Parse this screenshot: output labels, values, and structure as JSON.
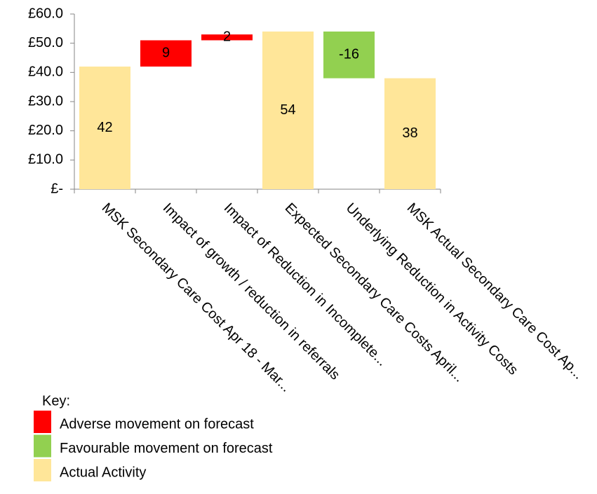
{
  "chart_data": {
    "type": "waterfall",
    "categories": [
      "MSK Secondary Care Cost Apr 18 - Mar...",
      "Impact of growth / reduction in referrals",
      "Impact of Reduction in Incomplete...",
      "Expected Secondary Care Costs April...",
      "Underlying Reduction in Activity Costs",
      "MSK Actual Secondary Care Cost Ap..."
    ],
    "values": [
      42,
      9,
      2,
      54,
      -16,
      38
    ],
    "colors": [
      "#ffe699",
      "#ff0000",
      "#ff0000",
      "#ffe699",
      "#92d050",
      "#ffe699"
    ],
    "ylim": [
      0,
      60
    ],
    "yticks": [
      {
        "value": 0,
        "label": "£-"
      },
      {
        "value": 10,
        "label": "£10.0"
      },
      {
        "value": 20,
        "label": "£20.0"
      },
      {
        "value": 30,
        "label": "£30.0"
      },
      {
        "value": 40,
        "label": "£40.0"
      },
      {
        "value": 50,
        "label": "£50.0"
      },
      {
        "value": 60,
        "label": "£60.0"
      }
    ],
    "legend": {
      "title": "Key:",
      "items": [
        {
          "name": "Adverse movement on forecast",
          "color": "#ff0000"
        },
        {
          "name": "Favourable movement on forecast",
          "color": "#92d050"
        },
        {
          "name": "Actual Activity",
          "color": "#ffe699"
        }
      ]
    }
  }
}
